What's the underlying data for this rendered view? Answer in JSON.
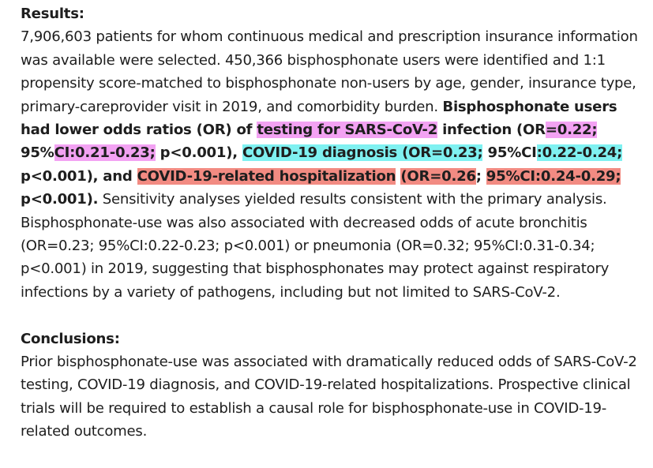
{
  "results": {
    "heading": "Results:",
    "p1": "7,906,603 patients for whom continuous medical and prescription insurance information was available were selected. 450,366 bisphosphonate users were identified and 1:1 propensity score-matched to bisphosphonate non-users by age, gender, insurance type, primary-careprovider visit in 2019, and comorbidity burden.",
    "b1": "Bisphosphonate users had lower odds ratios (OR) of ",
    "h_testing": "testing for SARS-CoV-2",
    "b2": " infection (OR",
    "h_or1": "=0.22;",
    "b3": " 95%",
    "h_ci1": "CI:0.21-0.23;",
    "b4": " p<0.001), ",
    "h_diag": "COVID-19 diagnosis (OR=0.23;",
    "b5": " 95%CI",
    "h_ci2": ":0.22-0.24;",
    "b6": " p<0.001), and ",
    "h_hosp": "COVID-19-related hospitalization",
    "b7": " ",
    "h_or3": "(OR=0.26",
    "b8": "; ",
    "h_ci3": "95%CI:0.24-0.29;",
    "b9": " p<0.001).",
    "p2": " Sensitivity analyses yielded results consistent with the primary analysis. Bisphosphonate-use was also associated with decreased odds of acute bronchitis (OR=0.23; 95%CI:0.22-0.23; p<0.001) or pneumonia (OR=0.32; 95%CI:0.31-0.34; p<0.001) in 2019, suggesting that bisphosphonates may protect against respiratory infections by a variety of pathogens, including but not limited to SARS-CoV-2."
  },
  "conclusions": {
    "heading": "Conclusions:",
    "text": "Prior bisphosphonate-use was associated with dramatically reduced odds of SARS-CoV-2 testing, COVID-19 diagnosis, and COVID-19-related hospitalizations. Prospective clinical trials will be required to establish a causal role for bisphosphonate-use in COVID-19-related outcomes."
  },
  "colors": {
    "highlight_pink": "#f3a2f3",
    "highlight_cyan": "#7ff1f1",
    "highlight_red": "#f28b82"
  }
}
